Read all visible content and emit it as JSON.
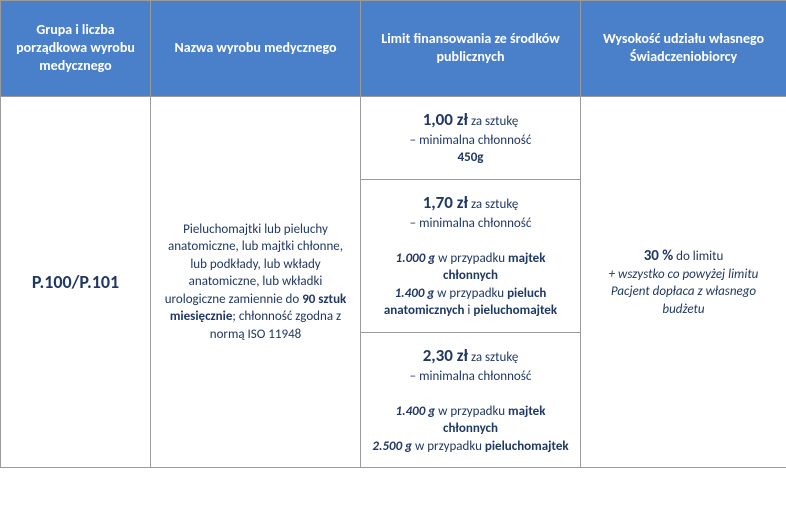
{
  "colors": {
    "header_bg": "#4a7fc9",
    "header_text": "#ffffff",
    "body_text": "#1f3864",
    "border": "#9b9b9b"
  },
  "col_widths": [
    "150px",
    "210px",
    "220px",
    "206px"
  ],
  "headers": {
    "c1": "Grupa i liczba porządkowa wyrobu medycznego",
    "c2": "Nazwa wyrobu medycznego",
    "c3": "Limit finansowania ze środków publicznych",
    "c4": "Wysokość udziału własnego Świadczeniobiorcy"
  },
  "code": "P.100/P.101",
  "desc": {
    "l1": "Pieluchomajtki lub pieluchy anatomiczne, lub majtki chłonne, lub podkłady, lub wkłady anatomiczne, lub wkładki urologiczne zamiennie do ",
    "l1b": "90 sztuk miesięcznie",
    "l2": "; chłonność zgodna z normą ISO 11948"
  },
  "tier1": {
    "price": "1,00 zł",
    "unit": " za sztukę",
    "sub1": "– minimalna chłonność",
    "val1": "450g"
  },
  "tier2": {
    "price": "1,70 zł",
    "unit": " za sztukę",
    "sub1": "– minimalna chłonność",
    "v1": "1.000 g",
    "t1a": " w przypadku ",
    "t1b": "majtek chłonnych",
    "v2": "1.400 g",
    "t2a": " w przypadku ",
    "t2b": "pieluch anatomicznych",
    "t2c": " i ",
    "t2d": "pieluchomajtek"
  },
  "tier3": {
    "price": "2,30 zł",
    "unit": " za sztukę",
    "sub1": "– minimalna chłonność",
    "v1": "1.400 g",
    "t1a": " w przypadku ",
    "t1b": "majtek chłonnych",
    "v2": "2.500 g",
    "t2a": " w przypadku ",
    "t2b": "pieluchomajtek"
  },
  "share": {
    "pct": "30 %",
    "txt": " do limitu",
    "note": "+ wszystko co powyżej limitu Pacjent dopłaca z własnego budżetu"
  }
}
